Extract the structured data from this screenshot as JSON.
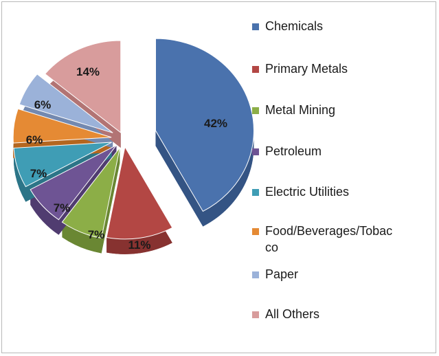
{
  "chart_data": {
    "type": "pie",
    "style": "3d-exploded",
    "legend_position": "right",
    "categories": [
      "Chemicals",
      "Primary Metals",
      "Metal Mining",
      "Petroleum",
      "Electric Utilities",
      "Food/Beverages/Tobac co",
      "Paper",
      "All Others"
    ],
    "values": [
      42,
      11,
      7,
      7,
      7,
      6,
      6,
      14
    ],
    "labels": [
      "42%",
      "11%",
      "7%",
      "7%",
      "7%",
      "6%",
      "6%",
      "14%"
    ],
    "colors": [
      "#4a72ad",
      "#b34744",
      "#8cae47",
      "#6e5494",
      "#3f9db5",
      "#e58a34",
      "#9bb2d9",
      "#d89c9c"
    ],
    "dark_colors": [
      "#345484",
      "#873230",
      "#6a8733",
      "#503c70",
      "#2c7588",
      "#b4661f",
      "#7389b0",
      "#b27474"
    ]
  }
}
